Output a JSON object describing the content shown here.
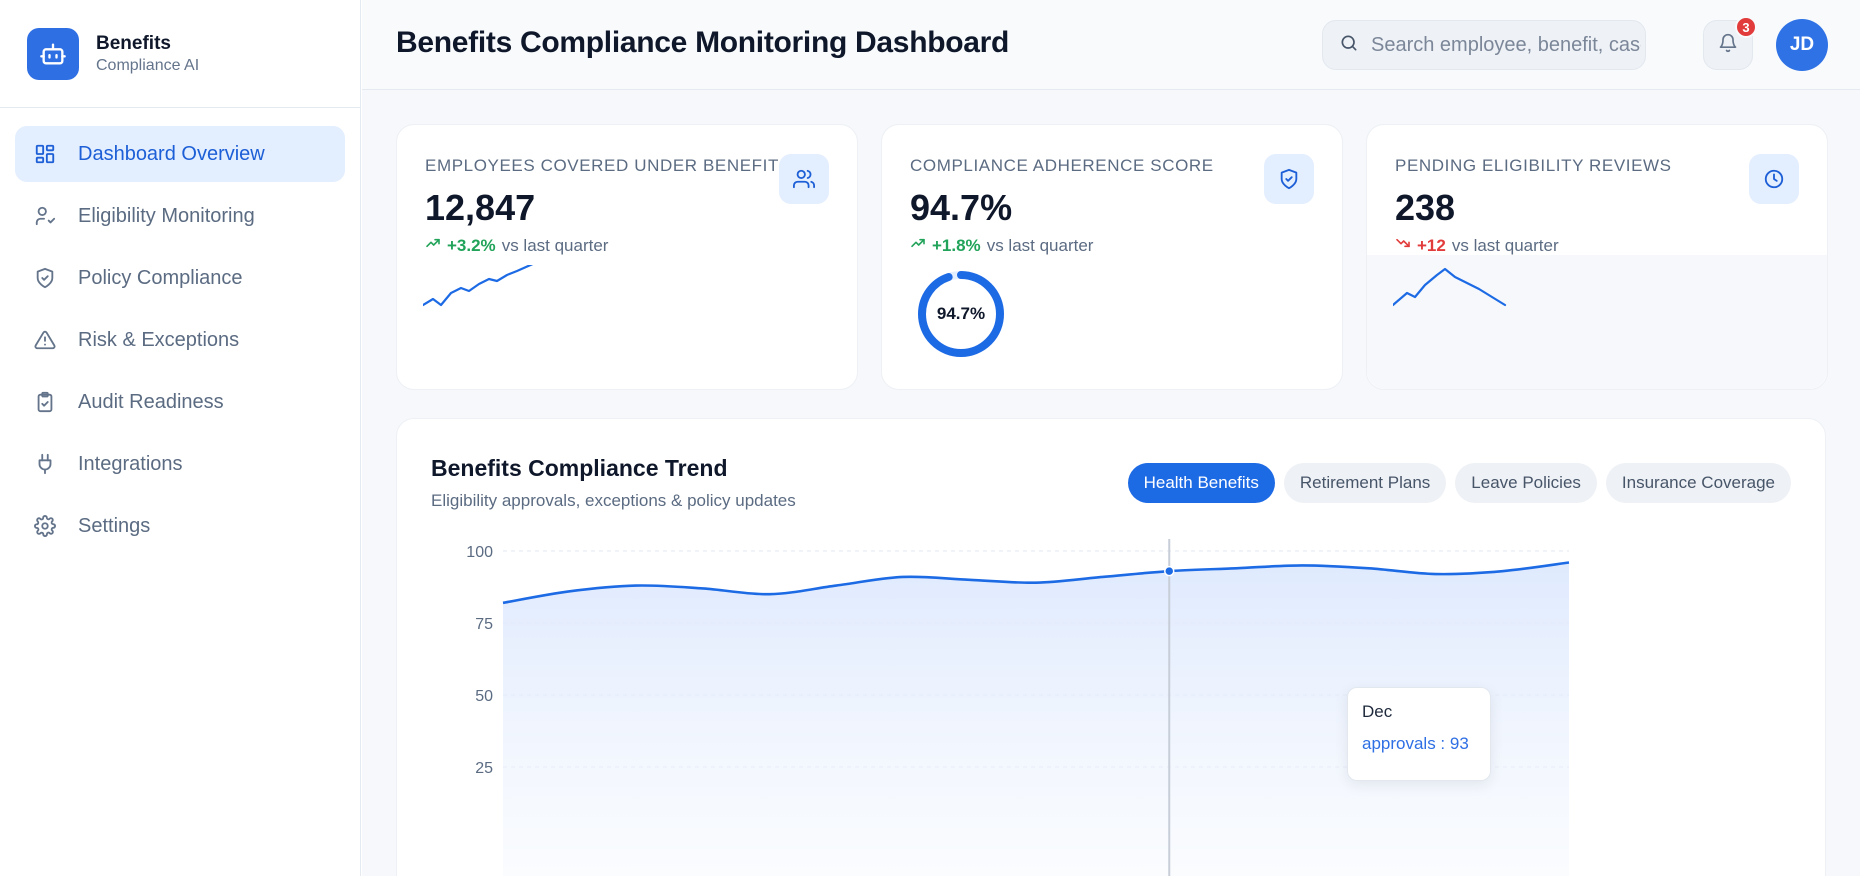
{
  "brand": {
    "name": "Benefits",
    "subtitle": "Compliance AI",
    "logo_icon": "robot-icon"
  },
  "sidebar": {
    "items": [
      {
        "label": "Dashboard Overview",
        "icon": "dashboard-grid-icon",
        "active": true
      },
      {
        "label": "Eligibility Monitoring",
        "icon": "user-check-icon",
        "active": false
      },
      {
        "label": "Policy Compliance",
        "icon": "shield-check-icon",
        "active": false
      },
      {
        "label": "Risk & Exceptions",
        "icon": "warning-triangle-icon",
        "active": false
      },
      {
        "label": "Audit Readiness",
        "icon": "clipboard-check-icon",
        "active": false
      },
      {
        "label": "Integrations",
        "icon": "plug-icon",
        "active": false
      },
      {
        "label": "Settings",
        "icon": "gear-icon",
        "active": false
      }
    ]
  },
  "header": {
    "title": "Benefits Compliance Monitoring Dashboard",
    "search_placeholder": "Search employee, benefit, case...",
    "notification_count": "3",
    "avatar_initials": "JD"
  },
  "kpis": [
    {
      "label": "Employees Covered Under Benefits",
      "value": "12,847",
      "delta": "+3.2%",
      "delta_direction": "up",
      "comparison": "vs last quarter",
      "icon": "users-icon"
    },
    {
      "label": "Compliance Adherence Score",
      "value": "94.7%",
      "delta": "+1.8%",
      "delta_direction": "up",
      "comparison": "vs last quarter",
      "icon": "shield-check-icon",
      "gauge_label": "94.7%",
      "gauge_value": 94.7
    },
    {
      "label": "Pending Eligibility Reviews",
      "value": "238",
      "delta": "+12",
      "delta_direction": "down",
      "comparison": "vs last quarter",
      "icon": "clock-icon"
    }
  ],
  "chart_section": {
    "title": "Benefits Compliance Trend",
    "subtitle": "Eligibility approvals, exceptions & policy updates",
    "tabs": [
      {
        "label": "Health Benefits",
        "active": true
      },
      {
        "label": "Retirement Plans",
        "active": false
      },
      {
        "label": "Leave Policies",
        "active": false
      },
      {
        "label": "Insurance Coverage",
        "active": false
      }
    ],
    "tooltip": {
      "title": "Dec",
      "value_text": "approvals : 93"
    }
  },
  "colors": {
    "accent": "#1d6ae5",
    "success": "#22a35a",
    "danger": "#e23b3b"
  },
  "chart_data": {
    "type": "area",
    "series": [
      {
        "name": "approvals",
        "values": [
          82,
          86,
          88,
          87,
          85,
          88,
          91,
          90,
          89,
          91,
          93,
          94,
          95,
          94,
          92,
          93,
          96
        ]
      }
    ],
    "yticks": [
      100,
      75,
      50,
      25
    ],
    "ylim": [
      0,
      100
    ],
    "highlight_index": 10,
    "grid": true
  }
}
